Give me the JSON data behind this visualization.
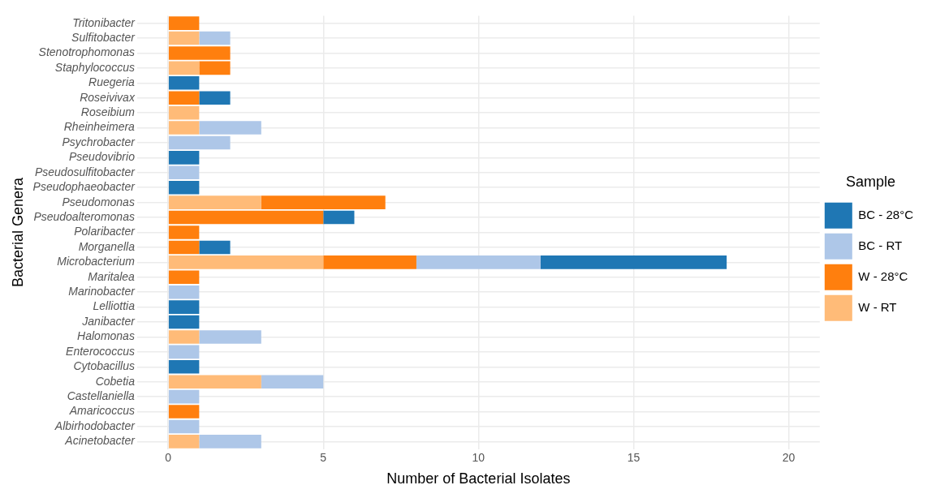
{
  "chart_data": {
    "type": "bar",
    "orientation": "horizontal",
    "stacked": true,
    "xlabel": "Number of Bacterial Isolates",
    "ylabel": "Bacterial Genera",
    "legend_title": "Sample",
    "legend": "right",
    "grid": true,
    "categories": [
      "Tritonibacter",
      "Sulfitobacter",
      "Stenotrophomonas",
      "Staphylococcus",
      "Ruegeria",
      "Roseivivax",
      "Roseibium",
      "Rheinheimera",
      "Psychrobacter",
      "Pseudovibrio",
      "Pseudosulfitobacter",
      "Pseudophaeobacter",
      "Pseudomonas",
      "Pseudoalteromonas",
      "Polaribacter",
      "Morganella",
      "Microbacterium",
      "Maritalea",
      "Marinobacter",
      "Lelliottia",
      "Janibacter",
      "Halomonas",
      "Enterococcus",
      "Cytobacillus",
      "Cobetia",
      "Castellaniella",
      "Amaricoccus",
      "Albirhodobacter",
      "Acinetobacter"
    ],
    "xlim": [
      -1,
      21
    ],
    "xticks": [
      0,
      5,
      10,
      15,
      20
    ],
    "series": [
      {
        "name": "W - RT",
        "color": "#ffbb78",
        "values": [
          0,
          1,
          0,
          1,
          0,
          0,
          1,
          1,
          0,
          0,
          0,
          0,
          3,
          0,
          0,
          0,
          5,
          0,
          0,
          0,
          0,
          1,
          0,
          0,
          3,
          0,
          0,
          0,
          1
        ]
      },
      {
        "name": "W - 28°C",
        "color": "#ff7f0e",
        "values": [
          1,
          0,
          2,
          1,
          0,
          1,
          0,
          0,
          0,
          0,
          0,
          0,
          4,
          5,
          1,
          1,
          3,
          1,
          0,
          0,
          0,
          0,
          0,
          0,
          0,
          0,
          1,
          0,
          0
        ]
      },
      {
        "name": "BC - RT",
        "color": "#aec7e8",
        "values": [
          0,
          1,
          0,
          0,
          0,
          0,
          0,
          2,
          2,
          0,
          1,
          0,
          0,
          0,
          0,
          0,
          4,
          0,
          1,
          0,
          0,
          2,
          1,
          0,
          2,
          1,
          0,
          1,
          2
        ]
      },
      {
        "name": "BC - 28°C",
        "color": "#1f77b4",
        "values": [
          0,
          0,
          0,
          0,
          1,
          1,
          0,
          0,
          0,
          1,
          0,
          1,
          0,
          1,
          0,
          1,
          6,
          0,
          0,
          1,
          1,
          0,
          0,
          1,
          0,
          0,
          0,
          0,
          0
        ]
      }
    ]
  }
}
